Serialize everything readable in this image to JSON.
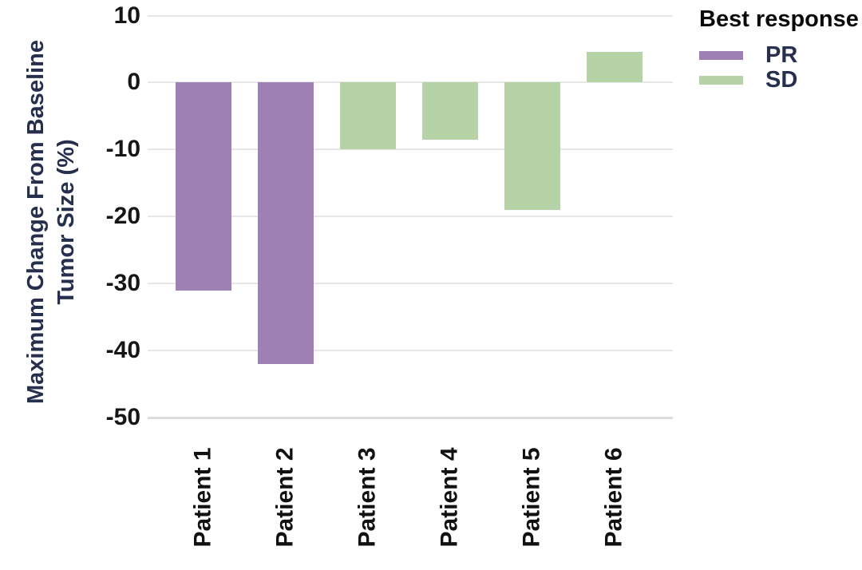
{
  "chart_data": {
    "type": "bar",
    "title": "",
    "categories": [
      "Patient 1",
      "Patient 2",
      "Patient 3",
      "Patient 4",
      "Patient 5",
      "Patient 6"
    ],
    "values": [
      -31,
      -42,
      -10,
      -8.5,
      -19,
      4.6
    ],
    "series_by_point": [
      "PR",
      "PR",
      "SD",
      "SD",
      "SD",
      "SD"
    ],
    "ylabel_line1": "Maximum Change From Baseline",
    "ylabel_line2": "Tumor Size (%)",
    "yticks": [
      10,
      0,
      -10,
      -20,
      -30,
      -40,
      -50
    ],
    "ylim": [
      -50,
      10
    ],
    "grid": "horizontal",
    "legend": {
      "title": "Best response",
      "position": "top-right",
      "entries": [
        {
          "label": "PR",
          "color": "#9f80b4"
        },
        {
          "label": "SD",
          "color": "#b5d3a6"
        }
      ]
    },
    "colors": {
      "PR": "#9f80b4",
      "SD": "#b5d3a6"
    }
  },
  "style": {
    "background": "#ffffff",
    "gridline_color": "#e7e7e7",
    "bottom_gridline_color": "#dcdcdc",
    "tick_text_color": "#161616",
    "axis_title_color": "#262f4d",
    "legend_title_color": "#0a0a0a",
    "legend_label_color": "#262f4d"
  }
}
